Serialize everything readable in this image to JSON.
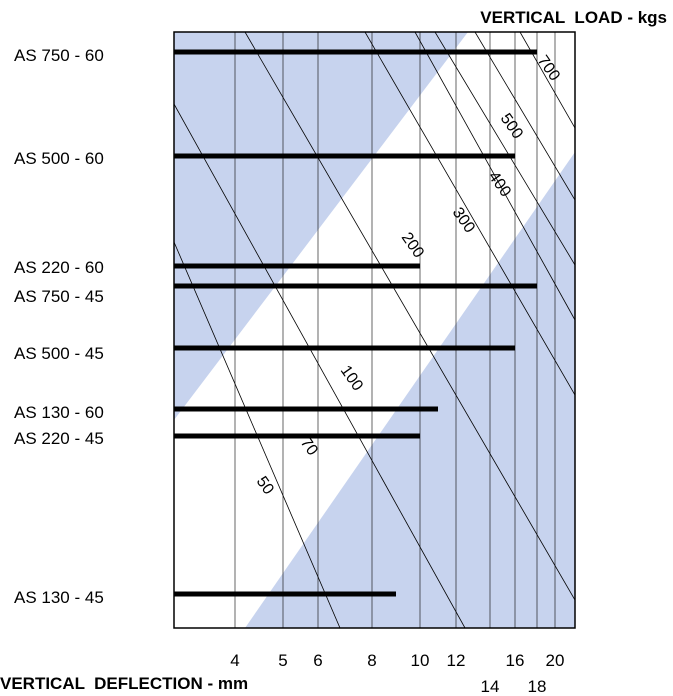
{
  "chart_data": {
    "type": "bar",
    "title": "VERTICAL  LOAD - kgs",
    "xlabel": "VERTICAL  DEFLECTION - mm",
    "x_ticks": [
      4,
      5,
      6,
      8,
      10,
      12,
      14,
      16,
      18,
      20
    ],
    "load_lines": [
      "50",
      "70",
      "100",
      "200",
      "300",
      "400",
      "500",
      "700"
    ],
    "categories": [
      "AS 750 - 60",
      "AS 500 - 60",
      "AS 220 - 60",
      "AS 750 - 45",
      "AS 500 - 45",
      "AS 130 - 60",
      "AS 220 - 45",
      "AS 130 - 45"
    ],
    "values": [
      18,
      16,
      10,
      18,
      16,
      11,
      10,
      9
    ],
    "grid": true,
    "colors": {
      "band": "#c7d3ee",
      "plot_bg": "#ffffff",
      "bar": "#000000",
      "grid": "#000000"
    }
  }
}
